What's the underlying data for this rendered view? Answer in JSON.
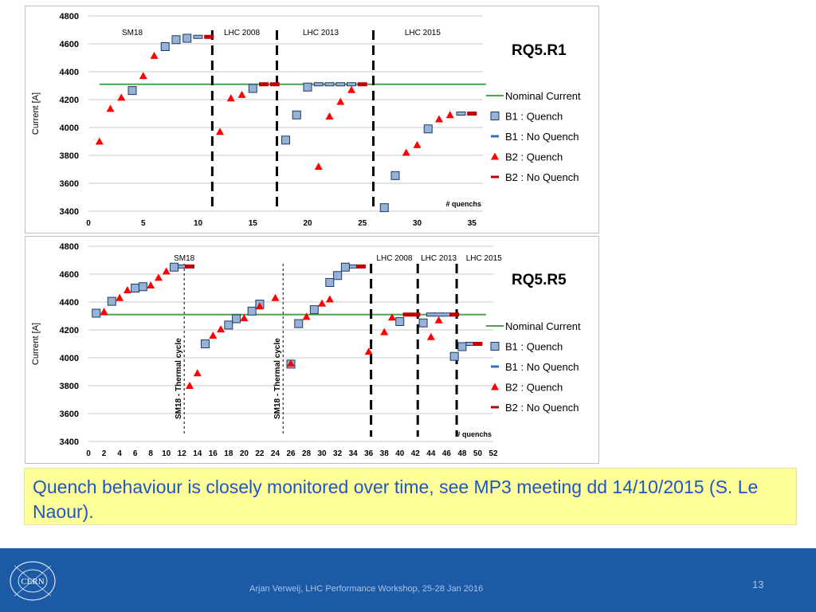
{
  "chart_data": [
    {
      "type": "scatter",
      "title": "RQ5.R1",
      "ylabel": "Current [A]",
      "x_axis_note": "# quenchs",
      "xlim": [
        0,
        36
      ],
      "ylim": [
        3400,
        4800
      ],
      "xticks": [
        0,
        5,
        10,
        15,
        20,
        25,
        30,
        35
      ],
      "yticks": [
        3400,
        3600,
        3800,
        4000,
        4200,
        4400,
        4600,
        4800
      ],
      "nominal_current": 4310,
      "legend": [
        "Nominal Current",
        "B1 : Quench",
        "B1 : No Quench",
        "B2 : Quench",
        "B2 : No Quench"
      ],
      "legend_position": "right",
      "separators": [
        11.3,
        17.2,
        26.0
      ],
      "periods": [
        {
          "label": "SM18",
          "x": 4
        },
        {
          "label": "LHC 2008",
          "x": 14
        },
        {
          "label": "LHC 2013",
          "x": 21.2
        },
        {
          "label": "LHC 2015",
          "x": 30.5
        }
      ],
      "series": [
        {
          "name": "B1 : Quench",
          "x": [
            4,
            7,
            8,
            9,
            15,
            18,
            19,
            20,
            27,
            28,
            31
          ],
          "y": [
            4265,
            4580,
            4630,
            4640,
            4280,
            3910,
            4090,
            4290,
            3425,
            3655,
            3990
          ]
        },
        {
          "name": "B1 : No Quench",
          "x": [
            10,
            21,
            22,
            23,
            24,
            34
          ],
          "y": [
            4650,
            4310,
            4310,
            4310,
            4310,
            4100
          ]
        },
        {
          "name": "B2 : Quench",
          "x": [
            1,
            2,
            3,
            5,
            6,
            12,
            13,
            14,
            21,
            22,
            23,
            24,
            29,
            30,
            32,
            33
          ],
          "y": [
            3900,
            4135,
            4215,
            4370,
            4515,
            3970,
            4210,
            4235,
            3720,
            4080,
            4185,
            4270,
            3820,
            3875,
            4060,
            4090
          ]
        },
        {
          "name": "B2 : No Quench",
          "x": [
            11,
            16,
            17,
            25,
            35
          ],
          "y": [
            4650,
            4310,
            4310,
            4310,
            4100
          ]
        }
      ]
    },
    {
      "type": "scatter",
      "title": "RQ5.R5",
      "ylabel": "Current [A]",
      "x_axis_note": "# quenchs",
      "xlim": [
        0,
        52
      ],
      "ylim": [
        3400,
        4800
      ],
      "xticks": [
        0,
        2,
        4,
        6,
        8,
        10,
        12,
        14,
        16,
        18,
        20,
        22,
        24,
        26,
        28,
        30,
        32,
        34,
        36,
        38,
        40,
        42,
        44,
        46,
        48,
        50,
        52
      ],
      "yticks": [
        3400,
        3600,
        3800,
        4000,
        4200,
        4400,
        4600,
        4800
      ],
      "nominal_current": 4310,
      "legend": [
        "Nominal Current",
        "B1 : Quench",
        "B1 : No Quench",
        "B2 : Quench",
        "B2 : No Quench"
      ],
      "legend_position": "right",
      "separators": [
        36.3,
        42.3,
        47.3
      ],
      "thermal_cycles": [
        {
          "x": 12.3,
          "label": "SM18 - Thermal cycle"
        },
        {
          "x": 25.0,
          "label": "SM18 - Thermal cycle"
        }
      ],
      "periods": [
        {
          "label": "SM18",
          "x": 12.3
        },
        {
          "label": "LHC 2008",
          "x": 39.3
        },
        {
          "label": "LHC 2013",
          "x": 45.0
        },
        {
          "label": "LHC 2015",
          "x": 50.8
        }
      ],
      "series": [
        {
          "name": "B1 : Quench",
          "x": [
            1,
            3,
            6,
            7,
            11,
            15,
            18,
            19,
            21,
            22,
            26,
            27,
            29,
            31,
            32,
            33,
            40,
            43,
            47,
            48
          ],
          "y": [
            4320,
            4405,
            4500,
            4510,
            4650,
            4100,
            4235,
            4280,
            4335,
            4385,
            3955,
            4245,
            4345,
            4540,
            4590,
            4650,
            4260,
            4250,
            4010,
            4080
          ]
        },
        {
          "name": "B1 : No Quench",
          "x": [
            12,
            34,
            44,
            45,
            46,
            49
          ],
          "y": [
            4655,
            4655,
            4310,
            4310,
            4310,
            4100
          ]
        },
        {
          "name": "B2 : Quench",
          "x": [
            2,
            4,
            5,
            8,
            9,
            10,
            13,
            14,
            16,
            17,
            20,
            22,
            24,
            26,
            28,
            30,
            31,
            36,
            38,
            39,
            44,
            45
          ],
          "y": [
            4330,
            4430,
            4485,
            4520,
            4575,
            4620,
            3800,
            3890,
            4160,
            4205,
            4285,
            4370,
            4430,
            3960,
            4295,
            4390,
            4420,
            4045,
            4185,
            4290,
            4150,
            4270
          ]
        },
        {
          "name": "B2 : No Quench",
          "x": [
            13,
            35,
            41,
            42,
            47,
            50
          ],
          "y": [
            4655,
            4655,
            4310,
            4310,
            4310,
            4100
          ]
        }
      ]
    }
  ],
  "callout": "Quench behaviour is closely monitored over time, see MP3 meeting dd 14/10/2015 (S. Le Naour).",
  "footer": {
    "author": "Arjan Verweij, LHC Performance Workshop, 25-28 Jan 2016",
    "page_number": "13",
    "logo_text": "CERN"
  },
  "colors": {
    "b1_fill": "#95b3d7",
    "b1_stroke": "#1f3864",
    "b2_fill": "#ff0000",
    "b2_dash": "#c00000",
    "nominal": "#4aa64a",
    "footer_bg": "#1c5aa6",
    "callout_bg": "#ffff99",
    "callout_text": "#1f55c7"
  }
}
